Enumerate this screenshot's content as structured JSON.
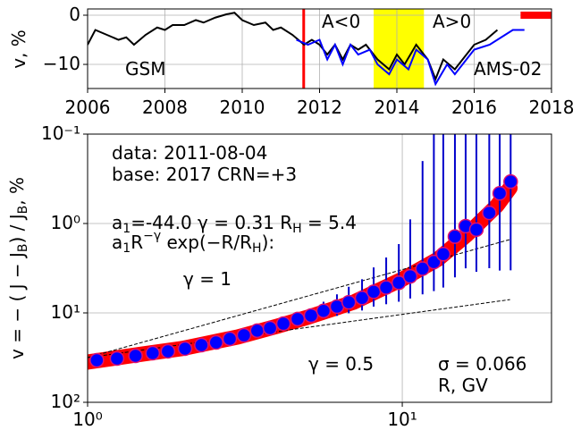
{
  "chart_data": [
    {
      "type": "line",
      "ylabel": "v, %",
      "xlim": [
        2006,
        2018
      ],
      "ylim": [
        -14.9,
        1.27
      ],
      "xticks": [
        2006,
        2008,
        2010,
        2012,
        2014,
        2016,
        2018
      ],
      "yticks": [
        {
          "value": -10,
          "label": "−10"
        },
        0
      ],
      "grid": true,
      "annotations": [
        "A<0",
        "A>0"
      ],
      "event_line": {
        "x": 2011.59,
        "color": "#ff0000"
      },
      "span": {
        "x": [
          2013.4,
          2014.7
        ],
        "color": "#ffff00"
      },
      "bar": {
        "x": [
          2017.2,
          2018
        ],
        "y": 0,
        "color": "#ff0000"
      },
      "series": [
        {
          "name": "GSM",
          "color": "#000000",
          "x": [
            2006.0,
            2006.2,
            2006.5,
            2006.8,
            2007.0,
            2007.2,
            2007.5,
            2007.8,
            2008.0,
            2008.2,
            2008.5,
            2008.8,
            2009.0,
            2009.3,
            2009.6,
            2009.8,
            2010.0,
            2010.3,
            2010.6,
            2010.8,
            2011.0,
            2011.3,
            2011.6,
            2011.8,
            2012.0,
            2012.2,
            2012.4,
            2012.6,
            2012.8,
            2013.0,
            2013.2,
            2013.5,
            2013.8,
            2014.0,
            2014.2,
            2014.5,
            2014.8,
            2015.0,
            2015.2,
            2015.5,
            2015.8,
            2016.0,
            2016.3,
            2016.6
          ],
          "values": [
            -6,
            -3,
            -4,
            -5,
            -4.5,
            -6,
            -4,
            -2.5,
            -3,
            -2,
            -2,
            -1,
            -1.5,
            -0.5,
            0.2,
            0.5,
            -1,
            -2,
            -1.5,
            -3,
            -2.5,
            -4,
            -6,
            -5,
            -6,
            -8,
            -6,
            -9,
            -6,
            -7,
            -6,
            -9,
            -11,
            -8,
            -10,
            -6,
            -9,
            -13,
            -9,
            -11,
            -8,
            -6,
            -5,
            -3
          ]
        },
        {
          "name": "AMS-02",
          "color": "#0000ff",
          "x": [
            2011.4,
            2011.7,
            2012.0,
            2012.2,
            2012.4,
            2012.6,
            2012.8,
            2013.0,
            2013.3,
            2013.5,
            2013.8,
            2014.0,
            2014.3,
            2014.5,
            2014.8,
            2015.0,
            2015.3,
            2015.5,
            2015.8,
            2016.0,
            2016.4,
            2016.8,
            2017.0,
            2017.3
          ],
          "values": [
            -5,
            -6,
            -5,
            -9,
            -6,
            -10,
            -6,
            -8,
            -7,
            -10,
            -12,
            -9,
            -11,
            -7,
            -9,
            -14,
            -10,
            -12,
            -9,
            -7,
            -6,
            -4,
            -3,
            -3
          ]
        }
      ]
    },
    {
      "type": "scatter",
      "ylabel": "v = − ( J − J_{B}) / J_{B}, %",
      "xlabel": "R, GV",
      "xscale": "log",
      "yscale": "log",
      "y_inverted": true,
      "xlim": [
        1,
        29.8
      ],
      "ylim": [
        0.1,
        100
      ],
      "xticks": [
        {
          "value": 1,
          "label": "10⁰"
        },
        {
          "value": 10,
          "label": "10¹"
        }
      ],
      "yticks": [
        {
          "value": 0.1,
          "label": "10⁻¹"
        },
        {
          "value": 1,
          "label": "10⁰"
        },
        {
          "value": 10,
          "label": "10¹"
        },
        {
          "value": 100,
          "label": "10²"
        }
      ],
      "grid": true,
      "annotations": [
        "data: 2011-08-04",
        "base: 2017   CRN=+3",
        "a_{1}=-44.0  γ = 0.31  R_{H} =  5.4",
        "a_{1}R^{−γ} exp(−R/R_{H}):",
        "σ = 0.066"
      ],
      "fit": {
        "color": "#ff0000",
        "x": [
          1.0,
          1.5,
          2,
          3,
          4,
          5,
          7,
          10,
          13,
          16,
          20,
          22
        ],
        "values": [
          35.5,
          28.8,
          25,
          18.6,
          14.1,
          11.2,
          7.6,
          4.2,
          2.5,
          1.35,
          0.63,
          0.4
        ]
      },
      "guides": [
        {
          "label": "γ = 1",
          "x": [
            1,
            22
          ],
          "values": [
            31.6,
            1.51
          ]
        },
        {
          "label": "γ = 0.5",
          "x": [
            1,
            22
          ],
          "values": [
            31.6,
            7.1
          ]
        }
      ],
      "points": {
        "color": "#0000ff",
        "edgecolor": "#e0106f",
        "errorcolor": "#0000cc",
        "x": [
          1.07,
          1.24,
          1.42,
          1.61,
          1.8,
          2.04,
          2.3,
          2.56,
          2.83,
          3.14,
          3.46,
          3.8,
          4.19,
          4.65,
          5.13,
          5.62,
          6.2,
          6.76,
          7.45,
          8.11,
          8.89,
          9.75,
          10.6,
          11.6,
          12.6,
          13.5,
          14.7,
          15.9,
          17.2,
          18.9,
          20.4,
          22.1
        ],
        "values": [
          33.9,
          32.4,
          30.2,
          28.2,
          26.9,
          25.1,
          22.9,
          21.4,
          19.5,
          17.8,
          15.8,
          14.8,
          13.2,
          11.7,
          10.7,
          9.5,
          8.5,
          7.6,
          6.8,
          5.8,
          5.2,
          4.6,
          3.9,
          3.2,
          2.7,
          2.2,
          1.4,
          1.07,
          1.17,
          0.76,
          0.46,
          0.34
        ],
        "errors": [
          0.3,
          0.3,
          0.3,
          0.3,
          0.3,
          0.3,
          0.3,
          0.3,
          0.4,
          0.5,
          0.6,
          0.8,
          1.0,
          1.3,
          1.6,
          2.0,
          2.3,
          2.5,
          2.6,
          2.7,
          2.8,
          2.9,
          3.0,
          3.0,
          3.0,
          3.0,
          2.6,
          2.1,
          2.3,
          2.4,
          2.9,
          3.0
        ]
      }
    }
  ]
}
